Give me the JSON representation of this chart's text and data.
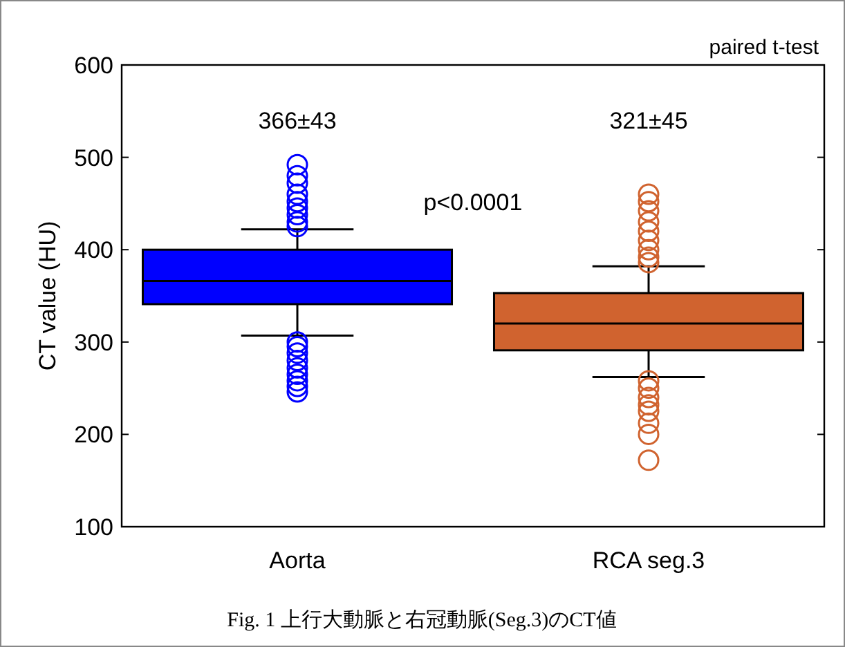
{
  "chart_data": {
    "type": "box",
    "ylabel": "CT value (HU)",
    "categories": [
      "Aorta",
      "RCA seg.3"
    ],
    "colors": [
      "#0000ff",
      "#d0632f"
    ],
    "boxes": [
      {
        "low": 307,
        "q1": 341,
        "median": 366,
        "q3": 400,
        "high": 422,
        "outliers": [
          492,
          480,
          472,
          460,
          452,
          445,
          438,
          430,
          425,
          300,
          295,
          288,
          280,
          272,
          265,
          258,
          252,
          246
        ]
      },
      {
        "low": 262,
        "q1": 291,
        "median": 320,
        "q3": 353,
        "high": 382,
        "outliers": [
          460,
          452,
          442,
          430,
          420,
          410,
          400,
          392,
          386,
          258,
          250,
          240,
          232,
          225,
          212,
          200,
          172
        ]
      }
    ],
    "ylim": [
      100,
      600
    ],
    "yticks": [
      100,
      200,
      300,
      400,
      500,
      600
    ],
    "grid": false,
    "annotations": [
      "366±43",
      "321±45",
      "p<0.0001",
      "paired t-test",
      "Fig. 1 上行大動脈と右冠動脈(Seg.3)のCT値"
    ]
  }
}
